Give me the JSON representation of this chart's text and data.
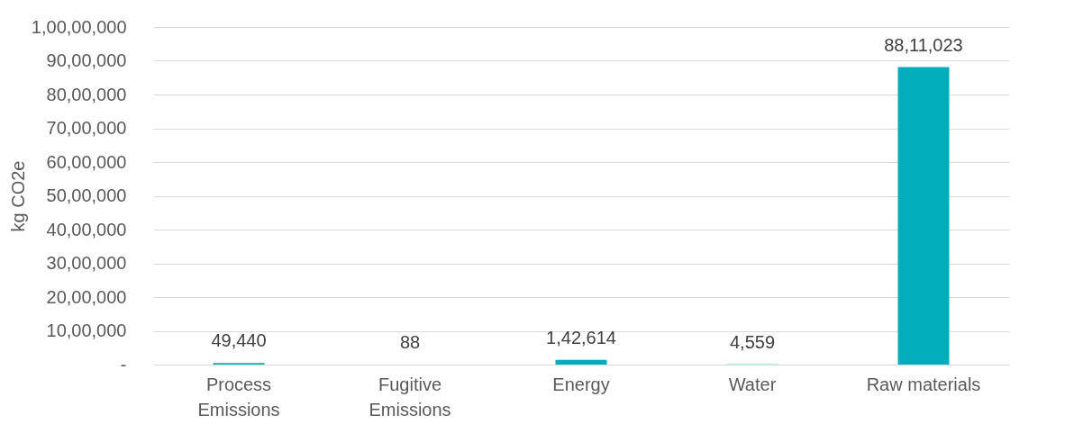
{
  "chart_data": {
    "type": "bar",
    "ylabel": "kg CO2e",
    "categories": [
      "Process Emissions",
      "Fugitive Emissions",
      "Energy",
      "Water",
      "Raw materials"
    ],
    "values": [
      49440,
      88,
      142614,
      4559,
      8811023
    ],
    "value_labels": [
      "49,440",
      "88",
      "1,42,614",
      "4,559",
      "88,11,023"
    ],
    "color": "#00aebb",
    "ylim": [
      0,
      10000000
    ],
    "yticks": [
      {
        "value": 0,
        "label": "-"
      },
      {
        "value": 1000000,
        "label": "10,00,000"
      },
      {
        "value": 2000000,
        "label": "20,00,000"
      },
      {
        "value": 3000000,
        "label": "30,00,000"
      },
      {
        "value": 4000000,
        "label": "40,00,000"
      },
      {
        "value": 5000000,
        "label": "50,00,000"
      },
      {
        "value": 6000000,
        "label": "60,00,000"
      },
      {
        "value": 7000000,
        "label": "70,00,000"
      },
      {
        "value": 8000000,
        "label": "80,00,000"
      },
      {
        "value": 9000000,
        "label": "90,00,000"
      },
      {
        "value": 10000000,
        "label": "1,00,00,000"
      }
    ],
    "grid": "y"
  }
}
